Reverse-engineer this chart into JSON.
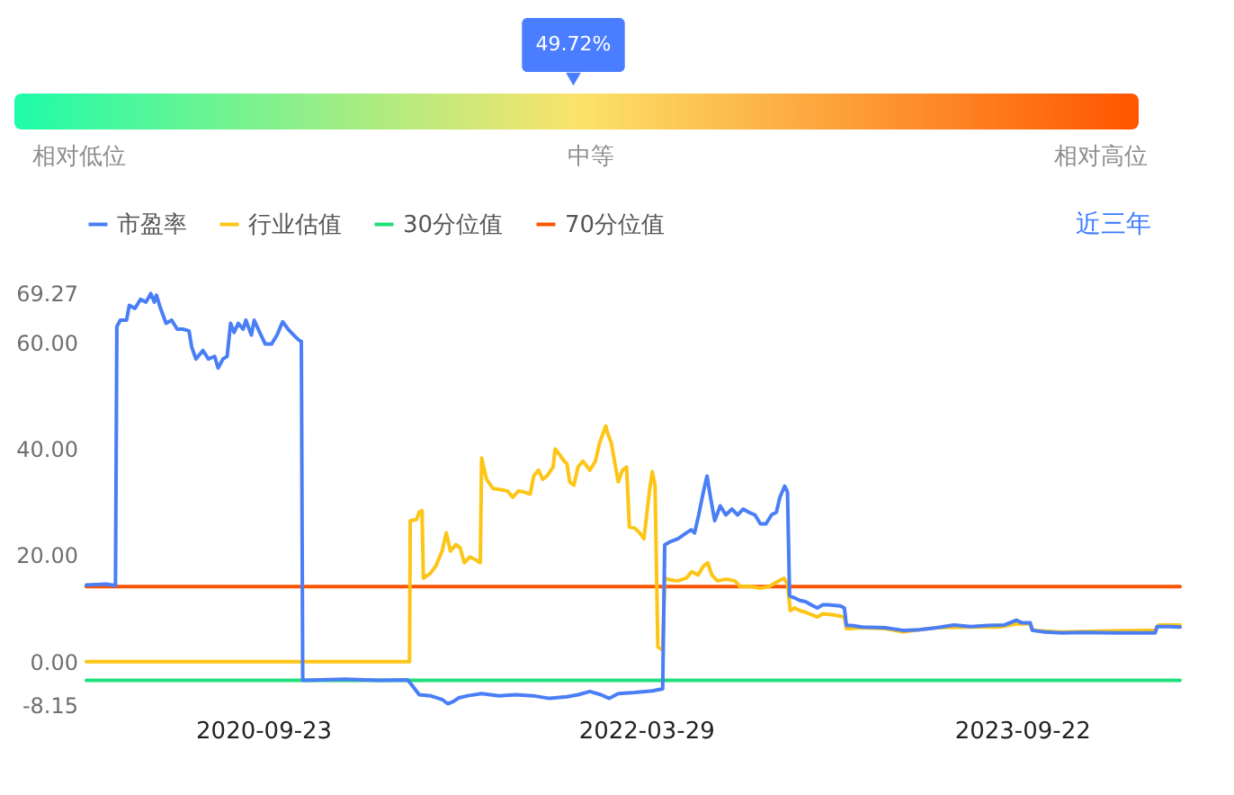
{
  "chart_data": [
    {
      "type": "other",
      "colors": [
        "#1efcaa",
        "#fbe36a",
        "#ff5500"
      ],
      "annotations": [
        "相对低位",
        "中等",
        "相对高位"
      ],
      "series": [
        {
          "color": "#4a7dff",
          "values": [
            49.72
          ],
          "value_labels": [
            "49.72%"
          ]
        }
      ]
    },
    {
      "type": "line",
      "legend": "top left",
      "grid": false,
      "annotations": [
        "近三年"
      ],
      "xlim": [
        "2020-01-12",
        "2024-05-07"
      ],
      "xticks": [
        "2020-09-23",
        "2022-03-29",
        "2023-09-22"
      ],
      "ylim": [
        -8.15,
        69.27
      ],
      "yticks": [
        -8.15,
        {
          "value": 0,
          "label": "0.00"
        },
        {
          "value": 20,
          "label": "20.00"
        },
        {
          "value": 40,
          "label": "40.00"
        },
        {
          "value": 60,
          "label": "60.00"
        },
        69.27
      ],
      "series": [
        {
          "name": "市盈率",
          "color": "#4a7ef6",
          "x": [
            "2020-01-12",
            "2020-02-10",
            "2020-02-23",
            "2020-02-25",
            "2020-03-01",
            "2020-03-10",
            "2020-03-14",
            "2020-03-22",
            "2020-03-30",
            "2020-04-07",
            "2020-04-14",
            "2020-04-19",
            "2020-04-22",
            "2020-04-28",
            "2020-05-06",
            "2020-05-14",
            "2020-05-22",
            "2020-05-30",
            "2020-06-08",
            "2020-06-12",
            "2020-06-18",
            "2020-06-28",
            "2020-07-06",
            "2020-07-15",
            "2020-07-20",
            "2020-07-27",
            "2020-08-02",
            "2020-08-07",
            "2020-08-12",
            "2020-08-18",
            "2020-08-25",
            "2020-08-29",
            "2020-09-06",
            "2020-09-10",
            "2020-09-18",
            "2020-09-26",
            "2020-10-05",
            "2020-10-13",
            "2020-10-21",
            "2020-10-29",
            "2020-11-06",
            "2020-11-13",
            "2020-11-17",
            "2020-11-19",
            "2021-01-19",
            "2021-03-09",
            "2021-04-19",
            "2021-04-23",
            "2021-05-06",
            "2021-05-22",
            "2021-06-08",
            "2021-06-16",
            "2021-06-24",
            "2021-07-02",
            "2021-07-15",
            "2021-08-04",
            "2021-08-29",
            "2021-09-22",
            "2021-10-17",
            "2021-11-10",
            "2021-12-05",
            "2021-12-21",
            "2022-01-07",
            "2022-01-23",
            "2022-02-04",
            "2022-02-17",
            "2022-03-13",
            "2022-04-07",
            "2022-04-22",
            "2022-04-25",
            "2022-05-02",
            "2022-05-14",
            "2022-05-26",
            "2022-06-02",
            "2022-06-07",
            "2022-06-13",
            "2022-06-20",
            "2022-06-25",
            "2022-06-30",
            "2022-07-06",
            "2022-07-14",
            "2022-07-22",
            "2022-07-31",
            "2022-08-08",
            "2022-08-16",
            "2022-08-24",
            "2022-09-02",
            "2022-09-10",
            "2022-09-18",
            "2022-09-26",
            "2022-10-03",
            "2022-10-08",
            "2022-10-15",
            "2022-10-19",
            "2022-10-22",
            "2022-10-29",
            "2022-11-06",
            "2022-11-14",
            "2022-11-22",
            "2022-12-01",
            "2022-12-09",
            "2022-12-17",
            "2023-01-03",
            "2023-01-09",
            "2023-01-12",
            "2023-01-19",
            "2023-02-04",
            "2023-03-09",
            "2023-04-03",
            "2023-04-27",
            "2023-05-22",
            "2023-06-16",
            "2023-07-10",
            "2023-08-04",
            "2023-08-28",
            "2023-09-14",
            "2023-09-22",
            "2023-10-04",
            "2023-10-07",
            "2023-10-25",
            "2023-11-18",
            "2023-12-21",
            "2024-01-31",
            "2024-03-04",
            "2024-04-01",
            "2024-04-04",
            "2024-04-22",
            "2024-05-07"
          ],
          "values": [
            14.4,
            14.6,
            14.3,
            63.0,
            64.2,
            64.2,
            67.0,
            66.4,
            68.1,
            67.6,
            69.2,
            67.6,
            68.9,
            66.4,
            63.6,
            64.2,
            62.5,
            62.5,
            62.2,
            59.1,
            56.9,
            58.5,
            56.9,
            57.4,
            55.2,
            56.9,
            57.4,
            63.6,
            61.9,
            63.6,
            62.5,
            64.2,
            61.4,
            64.2,
            61.9,
            59.7,
            59.7,
            61.4,
            63.9,
            62.5,
            61.4,
            60.5,
            60.2,
            -3.5,
            -3.3,
            -3.5,
            -3.4,
            -4.0,
            -6.2,
            -6.4,
            -7.1,
            -7.9,
            -7.5,
            -6.8,
            -6.4,
            -6.0,
            -6.4,
            -6.2,
            -6.4,
            -6.9,
            -6.6,
            -6.2,
            -5.6,
            -6.2,
            -6.9,
            -6.0,
            -5.8,
            -5.5,
            -5.1,
            22.0,
            22.5,
            23.1,
            24.2,
            24.8,
            24.2,
            27.6,
            32.1,
            34.9,
            30.9,
            26.5,
            29.3,
            27.6,
            28.7,
            27.6,
            28.7,
            28.1,
            27.6,
            25.9,
            25.9,
            27.6,
            28.1,
            30.9,
            33.0,
            31.9,
            12.4,
            12.0,
            11.5,
            11.3,
            10.7,
            10.1,
            10.7,
            10.7,
            10.5,
            10.1,
            6.8,
            6.8,
            6.5,
            6.4,
            5.9,
            6.0,
            6.4,
            6.9,
            6.6,
            6.8,
            6.9,
            7.8,
            7.3,
            7.3,
            5.9,
            5.6,
            5.4,
            5.5,
            5.4,
            5.4,
            5.4,
            6.6,
            6.6,
            6.5
          ]
        },
        {
          "name": "行业估值",
          "color": "#fdc516",
          "x": [
            "2020-01-12",
            "2021-04-22",
            "2021-04-23",
            "2021-05-02",
            "2021-05-06",
            "2021-05-10",
            "2021-05-12",
            "2021-05-22",
            "2021-05-30",
            "2021-06-08",
            "2021-06-14",
            "2021-06-20",
            "2021-06-28",
            "2021-07-04",
            "2021-07-10",
            "2021-07-18",
            "2021-07-27",
            "2021-08-02",
            "2021-08-04",
            "2021-08-11",
            "2021-08-20",
            "2021-09-02",
            "2021-09-10",
            "2021-09-18",
            "2021-09-26",
            "2021-10-04",
            "2021-10-13",
            "2021-10-18",
            "2021-10-25",
            "2021-10-31",
            "2021-11-06",
            "2021-11-15",
            "2021-11-18",
            "2021-11-25",
            "2021-12-01",
            "2021-12-05",
            "2021-12-09",
            "2021-12-15",
            "2021-12-21",
            "2021-12-28",
            "2022-01-07",
            "2022-01-15",
            "2022-01-21",
            "2022-01-30",
            "2022-02-02",
            "2022-02-07",
            "2022-02-13",
            "2022-02-17",
            "2022-02-23",
            "2022-03-01",
            "2022-03-05",
            "2022-03-13",
            "2022-03-20",
            "2022-03-26",
            "2022-04-03",
            "2022-04-07",
            "2022-04-11",
            "2022-04-15",
            "2022-04-22",
            "2022-04-25",
            "2022-05-02",
            "2022-05-14",
            "2022-05-26",
            "2022-06-03",
            "2022-06-12",
            "2022-06-20",
            "2022-06-26",
            "2022-07-02",
            "2022-07-10",
            "2022-07-22",
            "2022-08-04",
            "2022-08-12",
            "2022-08-24",
            "2022-09-10",
            "2022-09-22",
            "2022-10-04",
            "2022-10-14",
            "2022-10-19",
            "2022-10-23",
            "2022-10-29",
            "2022-11-06",
            "2022-11-14",
            "2022-12-01",
            "2022-12-09",
            "2022-12-25",
            "2023-01-09",
            "2023-01-12",
            "2023-02-04",
            "2023-03-09",
            "2023-04-03",
            "2023-05-22",
            "2023-07-10",
            "2023-08-20",
            "2023-09-14",
            "2023-10-04",
            "2023-10-08",
            "2023-11-18",
            "2024-01-31",
            "2024-04-01",
            "2024-04-06",
            "2024-05-07"
          ],
          "values": [
            0.0,
            0.0,
            26.5,
            26.7,
            28.1,
            28.4,
            15.7,
            16.6,
            18.0,
            20.8,
            24.2,
            20.8,
            22.0,
            21.4,
            18.6,
            19.7,
            19.1,
            18.6,
            38.3,
            34.3,
            32.6,
            32.3,
            32.1,
            30.9,
            32.1,
            31.9,
            31.5,
            34.9,
            36.0,
            34.3,
            34.9,
            36.6,
            40.0,
            38.8,
            37.7,
            37.2,
            33.8,
            33.2,
            36.6,
            37.7,
            36.0,
            37.7,
            41.1,
            44.3,
            42.8,
            41.1,
            36.6,
            33.8,
            36.0,
            36.6,
            25.3,
            25.1,
            24.2,
            23.1,
            32.1,
            35.7,
            33.2,
            2.8,
            2.2,
            15.7,
            15.4,
            15.2,
            15.7,
            16.9,
            16.3,
            18.0,
            18.6,
            16.3,
            15.2,
            15.5,
            15.2,
            14.1,
            14.2,
            13.8,
            14.1,
            15.0,
            15.7,
            14.6,
            9.6,
            10.1,
            9.6,
            9.3,
            8.4,
            9.0,
            8.8,
            8.4,
            6.2,
            6.4,
            6.2,
            5.6,
            6.4,
            6.5,
            6.5,
            7.1,
            7.1,
            5.9,
            5.6,
            5.8,
            5.9,
            6.9,
            6.9
          ]
        },
        {
          "name": "30分位值",
          "color": "#1fdf7b",
          "x": [
            "2020-01-12",
            "2024-05-07"
          ],
          "values": [
            -3.5,
            -3.5
          ]
        },
        {
          "name": "70分位值",
          "color": "#fb5400",
          "x": [
            "2020-01-12",
            "2024-05-07"
          ],
          "values": [
            14.1,
            14.1
          ]
        }
      ]
    }
  ]
}
